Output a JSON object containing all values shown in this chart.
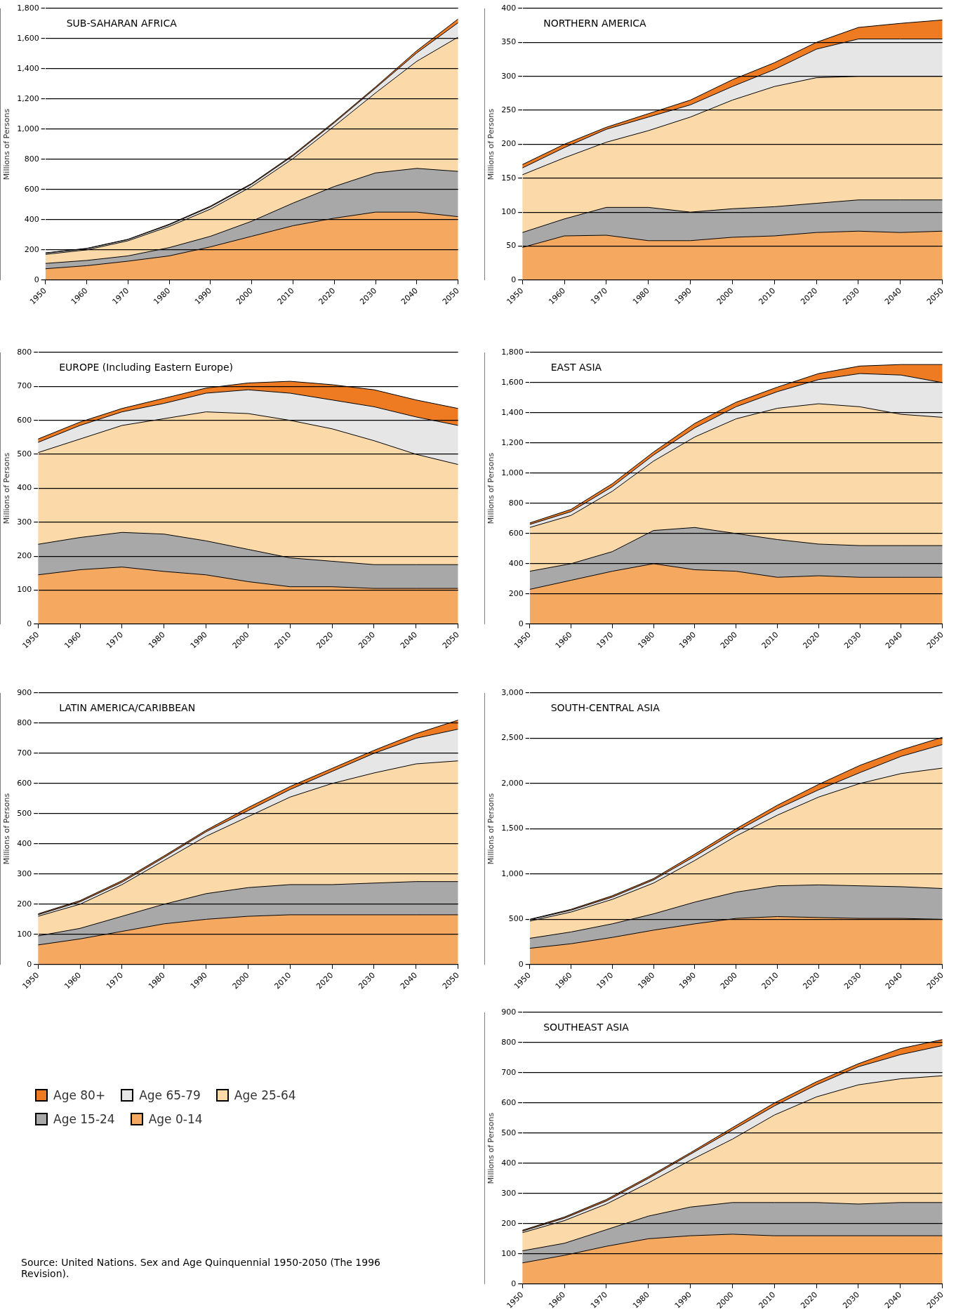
{
  "chart_data": [
    {
      "type": "area",
      "stacked": true,
      "title": "SUB-SAHARAN AFRICA",
      "ylabel": "Millions of Persons",
      "grid": "y",
      "x": [
        1950,
        1960,
        1970,
        1980,
        1990,
        2000,
        2010,
        2020,
        2030,
        2040,
        2050
      ],
      "xlim": [
        1950,
        2050
      ],
      "xticks": [
        1950,
        1960,
        1970,
        1980,
        1990,
        2000,
        2010,
        2020,
        2030,
        2040,
        2050
      ],
      "ylim": [
        0,
        1800
      ],
      "yticks": [
        0,
        200,
        400,
        600,
        800,
        {
          "value": 1000,
          "label": "1,000"
        },
        {
          "value": 1200,
          "label": "1,200"
        },
        {
          "value": 1400,
          "label": "1,400"
        },
        {
          "value": 1600,
          "label": "1,600"
        },
        {
          "value": 1800,
          "label": "1,800"
        }
      ],
      "series": [
        {
          "color": "#f4a860",
          "values": [
            75,
            95,
            125,
            160,
            220,
            290,
            360,
            410,
            450,
            450,
            420
          ]
        },
        {
          "color": "#a8a8a8",
          "values": [
            35,
            35,
            35,
            55,
            70,
            100,
            150,
            210,
            260,
            290,
            300
          ]
        },
        {
          "color": "#fcd9a8",
          "values": [
            60,
            70,
            100,
            140,
            180,
            230,
            295,
            400,
            530,
            710,
            890
          ]
        },
        {
          "color": "#e6e6e6",
          "values": [
            8,
            8,
            8,
            11,
            15,
            15,
            18,
            22,
            32,
            55,
            95
          ]
        },
        {
          "color": "#ee7a22",
          "values": [
            2,
            2,
            2,
            4,
            5,
            5,
            7,
            8,
            8,
            15,
            25
          ]
        }
      ]
    },
    {
      "type": "area",
      "stacked": true,
      "title": "NORTHERN AMERICA",
      "ylabel": "Millions of Persons",
      "grid": "y",
      "x": [
        1950,
        1960,
        1970,
        1980,
        1990,
        2000,
        2010,
        2020,
        2030,
        2040,
        2050
      ],
      "xlim": [
        1950,
        2050
      ],
      "xticks": [
        1950,
        1960,
        1970,
        1980,
        1990,
        2000,
        2010,
        2020,
        2030,
        2040,
        2050
      ],
      "ylim": [
        0,
        400
      ],
      "yticks": [
        0,
        50,
        100,
        150,
        200,
        250,
        300,
        350,
        400
      ],
      "series": [
        {
          "color": "#f4a860",
          "values": [
            48,
            65,
            66,
            58,
            58,
            63,
            65,
            70,
            72,
            70,
            72
          ]
        },
        {
          "color": "#a8a8a8",
          "values": [
            22,
            25,
            41,
            49,
            42,
            42,
            43,
            43,
            46,
            48,
            46
          ]
        },
        {
          "color": "#fcd9a8",
          "values": [
            85,
            90,
            96,
            113,
            140,
            160,
            177,
            185,
            182,
            182,
            182
          ]
        },
        {
          "color": "#e6e6e6",
          "values": [
            10,
            15,
            19,
            20,
            18,
            20,
            25,
            42,
            55,
            55,
            55
          ]
        },
        {
          "color": "#ee7a22",
          "values": [
            5,
            5,
            3,
            5,
            7,
            10,
            10,
            10,
            17,
            23,
            28
          ]
        }
      ]
    },
    {
      "type": "area",
      "stacked": true,
      "title": "EUROPE (Including Eastern Europe)",
      "ylabel": "Millions of Persons",
      "grid": "y",
      "x": [
        1950,
        1960,
        1970,
        1980,
        1990,
        2000,
        2010,
        2020,
        2030,
        2040,
        2050
      ],
      "xlim": [
        1950,
        2050
      ],
      "xticks": [
        1950,
        1960,
        1970,
        1980,
        1990,
        2000,
        2010,
        2020,
        2030,
        2040,
        2050
      ],
      "ylim": [
        0,
        800
      ],
      "yticks": [
        0,
        100,
        200,
        300,
        400,
        500,
        600,
        700,
        800
      ],
      "series": [
        {
          "color": "#f4a860",
          "values": [
            145,
            160,
            168,
            155,
            145,
            125,
            110,
            110,
            105,
            105,
            105
          ]
        },
        {
          "color": "#a8a8a8",
          "values": [
            90,
            95,
            102,
            110,
            100,
            95,
            85,
            75,
            70,
            70,
            70
          ]
        },
        {
          "color": "#fcd9a8",
          "values": [
            270,
            290,
            315,
            340,
            380,
            400,
            405,
            390,
            365,
            325,
            295
          ]
        },
        {
          "color": "#e6e6e6",
          "values": [
            30,
            40,
            40,
            45,
            55,
            70,
            80,
            85,
            100,
            110,
            115
          ]
        },
        {
          "color": "#ee7a22",
          "values": [
            10,
            10,
            10,
            15,
            15,
            20,
            35,
            45,
            50,
            50,
            50
          ]
        }
      ]
    },
    {
      "type": "area",
      "stacked": true,
      "title": "EAST ASIA",
      "ylabel": "Millions of Persons",
      "grid": "y",
      "x": [
        1950,
        1960,
        1970,
        1980,
        1990,
        2000,
        2010,
        2020,
        2030,
        2040,
        2050
      ],
      "xlim": [
        1950,
        2050
      ],
      "xticks": [
        1950,
        1960,
        1970,
        1980,
        1990,
        2000,
        2010,
        2020,
        2030,
        2040,
        2050
      ],
      "ylim": [
        0,
        1800
      ],
      "yticks": [
        0,
        200,
        400,
        600,
        800,
        {
          "value": 1000,
          "label": "1,000"
        },
        {
          "value": 1200,
          "label": "1,200"
        },
        {
          "value": 1400,
          "label": "1,400"
        },
        {
          "value": 1600,
          "label": "1,600"
        },
        {
          "value": 1800,
          "label": "1,800"
        }
      ],
      "series": [
        {
          "color": "#f4a860",
          "values": [
            230,
            290,
            350,
            400,
            360,
            350,
            310,
            320,
            310,
            310,
            310
          ]
        },
        {
          "color": "#a8a8a8",
          "values": [
            120,
            110,
            130,
            220,
            280,
            250,
            250,
            210,
            210,
            210,
            210
          ]
        },
        {
          "color": "#fcd9a8",
          "values": [
            290,
            320,
            400,
            460,
            600,
            760,
            870,
            930,
            920,
            870,
            850
          ]
        },
        {
          "color": "#e6e6e6",
          "values": [
            20,
            25,
            30,
            40,
            60,
            80,
            110,
            160,
            220,
            260,
            230
          ]
        },
        {
          "color": "#ee7a22",
          "values": [
            10,
            15,
            20,
            20,
            30,
            30,
            30,
            40,
            50,
            70,
            120
          ]
        }
      ]
    },
    {
      "type": "area",
      "stacked": true,
      "title": "LATIN AMERICA/CARIBBEAN",
      "ylabel": "Millions of Persons",
      "grid": "y",
      "x": [
        1950,
        1960,
        1970,
        1980,
        1990,
        2000,
        2010,
        2020,
        2030,
        2040,
        2050
      ],
      "xlim": [
        1950,
        2050
      ],
      "xticks": [
        1950,
        1960,
        1970,
        1980,
        1990,
        2000,
        2010,
        2020,
        2030,
        2040,
        2050
      ],
      "ylim": [
        0,
        900
      ],
      "yticks": [
        0,
        100,
        200,
        300,
        400,
        500,
        600,
        700,
        800,
        900
      ],
      "series": [
        {
          "color": "#f4a860",
          "values": [
            65,
            85,
            110,
            135,
            150,
            160,
            165,
            165,
            165,
            165,
            165
          ]
        },
        {
          "color": "#a8a8a8",
          "values": [
            30,
            35,
            50,
            65,
            85,
            95,
            100,
            100,
            105,
            110,
            110
          ]
        },
        {
          "color": "#fcd9a8",
          "values": [
            65,
            80,
            105,
            145,
            190,
            235,
            290,
            335,
            365,
            390,
            400
          ]
        },
        {
          "color": "#e6e6e6",
          "values": [
            5,
            8,
            8,
            10,
            15,
            20,
            25,
            40,
            65,
            85,
            105
          ]
        },
        {
          "color": "#ee7a22",
          "values": [
            3,
            4,
            5,
            5,
            5,
            10,
            10,
            10,
            10,
            15,
            30
          ]
        }
      ]
    },
    {
      "type": "area",
      "stacked": true,
      "title": "SOUTH-CENTRAL ASIA",
      "ylabel": "Millions of Persons",
      "grid": "y",
      "x": [
        1950,
        1960,
        1970,
        1980,
        1990,
        2000,
        2010,
        2020,
        2030,
        2040,
        2050
      ],
      "xlim": [
        1950,
        2050
      ],
      "xticks": [
        1950,
        1960,
        1970,
        1980,
        1990,
        2000,
        2010,
        2020,
        2030,
        2040,
        2050
      ],
      "ylim": [
        0,
        3000
      ],
      "yticks": [
        0,
        500,
        {
          "value": 1000,
          "label": "1,000"
        },
        {
          "value": 1500,
          "label": "1,500"
        },
        {
          "value": 2000,
          "label": "2,000"
        },
        {
          "value": 2500,
          "label": "2,500"
        },
        {
          "value": 3000,
          "label": "3,000"
        }
      ],
      "series": [
        {
          "color": "#f4a860",
          "values": [
            180,
            230,
            300,
            380,
            450,
            510,
            530,
            520,
            510,
            510,
            500
          ]
        },
        {
          "color": "#a8a8a8",
          "values": [
            110,
            130,
            150,
            180,
            240,
            290,
            340,
            360,
            360,
            350,
            340
          ]
        },
        {
          "color": "#fcd9a8",
          "values": [
            190,
            220,
            270,
            340,
            460,
            620,
            780,
            970,
            1130,
            1250,
            1330
          ]
        },
        {
          "color": "#e6e6e6",
          "values": [
            15,
            20,
            25,
            35,
            45,
            50,
            70,
            80,
            120,
            190,
            260
          ]
        },
        {
          "color": "#ee7a22",
          "values": [
            5,
            10,
            15,
            15,
            25,
            30,
            40,
            60,
            80,
            70,
            80
          ]
        }
      ]
    },
    {
      "type": "area",
      "stacked": true,
      "title": "SOUTHEAST ASIA",
      "ylabel": "Millions of Persons",
      "grid": "y",
      "legend": "left",
      "annotations": [
        "Source: United Nations. Sex and Age Quinquennial 1950-2050 (The 1996 Revision)."
      ],
      "x": [
        1950,
        1960,
        1970,
        1980,
        1990,
        2000,
        2010,
        2020,
        2030,
        2040,
        2050
      ],
      "xlim": [
        1950,
        2050
      ],
      "xticks": [
        1950,
        1960,
        1970,
        1980,
        1990,
        2000,
        2010,
        2020,
        2030,
        2040,
        2050
      ],
      "ylim": [
        0,
        900
      ],
      "yticks": [
        0,
        100,
        200,
        300,
        400,
        500,
        600,
        700,
        800,
        900
      ],
      "series": [
        {
          "name": "Age 0-14",
          "color": "#f4a860",
          "values": [
            70,
            95,
            125,
            150,
            160,
            165,
            160,
            160,
            160,
            160,
            160
          ]
        },
        {
          "name": "Age 15-24",
          "color": "#a8a8a8",
          "values": [
            40,
            40,
            55,
            75,
            95,
            105,
            110,
            110,
            105,
            110,
            110
          ]
        },
        {
          "name": "Age 25-64",
          "color": "#fcd9a8",
          "values": [
            60,
            75,
            85,
            110,
            155,
            210,
            290,
            350,
            395,
            410,
            420
          ]
        },
        {
          "name": "Age 65-79",
          "color": "#e6e6e6",
          "values": [
            5,
            8,
            10,
            15,
            20,
            30,
            30,
            40,
            60,
            80,
            100
          ]
        },
        {
          "name": "Age 80+",
          "color": "#ee7a22",
          "values": [
            3,
            4,
            5,
            5,
            5,
            8,
            10,
            10,
            10,
            20,
            20
          ]
        }
      ]
    }
  ]
}
